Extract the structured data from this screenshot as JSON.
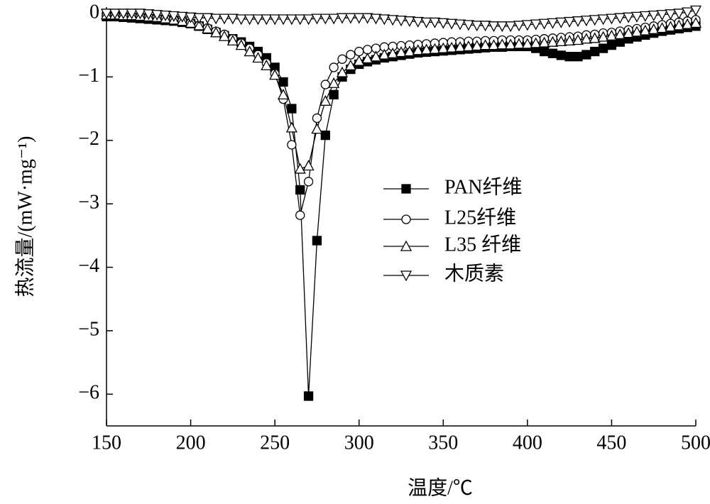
{
  "chart_data": {
    "type": "line",
    "xlabel": "温度/℃",
    "ylabel": "热流量/(mW·mg⁻¹)",
    "x": [
      150,
      155,
      160,
      165,
      170,
      175,
      180,
      185,
      190,
      195,
      200,
      205,
      210,
      215,
      220,
      225,
      230,
      235,
      240,
      245,
      250,
      255,
      260,
      265,
      270,
      275,
      280,
      285,
      290,
      295,
      300,
      305,
      310,
      315,
      320,
      325,
      330,
      335,
      340,
      345,
      350,
      355,
      360,
      365,
      370,
      375,
      380,
      385,
      390,
      395,
      400,
      405,
      410,
      415,
      420,
      425,
      430,
      435,
      440,
      445,
      450,
      455,
      460,
      465,
      470,
      475,
      480,
      485,
      490,
      495,
      500
    ],
    "series": [
      {
        "name": "PAN纤维",
        "color": "#000000",
        "marker": "filled-square",
        "values": [
          -0.05,
          -0.05,
          -0.06,
          -0.07,
          -0.08,
          -0.09,
          -0.1,
          -0.11,
          -0.12,
          -0.14,
          -0.16,
          -0.2,
          -0.25,
          -0.3,
          -0.35,
          -0.4,
          -0.45,
          -0.52,
          -0.6,
          -0.7,
          -0.85,
          -1.08,
          -1.5,
          -2.78,
          -6.03,
          -3.58,
          -1.92,
          -1.28,
          -1.0,
          -0.88,
          -0.8,
          -0.76,
          -0.73,
          -0.7,
          -0.68,
          -0.66,
          -0.64,
          -0.62,
          -0.61,
          -0.6,
          -0.59,
          -0.58,
          -0.57,
          -0.56,
          -0.55,
          -0.54,
          -0.53,
          -0.53,
          -0.52,
          -0.52,
          -0.52,
          -0.55,
          -0.6,
          -0.63,
          -0.66,
          -0.68,
          -0.68,
          -0.65,
          -0.6,
          -0.55,
          -0.5,
          -0.45,
          -0.4,
          -0.37,
          -0.34,
          -0.31,
          -0.28,
          -0.26,
          -0.24,
          -0.22,
          -0.2
        ]
      },
      {
        "name": "L25纤维",
        "color": "#000000",
        "marker": "open-circle",
        "values": [
          -0.03,
          -0.03,
          -0.04,
          -0.04,
          -0.05,
          -0.06,
          -0.07,
          -0.08,
          -0.1,
          -0.12,
          -0.15,
          -0.19,
          -0.23,
          -0.28,
          -0.33,
          -0.4,
          -0.47,
          -0.55,
          -0.65,
          -0.78,
          -0.95,
          -1.35,
          -2.07,
          -3.18,
          -2.65,
          -1.65,
          -1.12,
          -0.85,
          -0.72,
          -0.65,
          -0.6,
          -0.57,
          -0.55,
          -0.53,
          -0.52,
          -0.51,
          -0.5,
          -0.49,
          -0.48,
          -0.47,
          -0.46,
          -0.45,
          -0.45,
          -0.44,
          -0.44,
          -0.43,
          -0.43,
          -0.42,
          -0.42,
          -0.42,
          -0.42,
          -0.41,
          -0.4,
          -0.39,
          -0.38,
          -0.37,
          -0.36,
          -0.34,
          -0.33,
          -0.31,
          -0.3,
          -0.28,
          -0.26,
          -0.24,
          -0.22,
          -0.2,
          -0.18,
          -0.16,
          -0.14,
          -0.12,
          -0.1
        ]
      },
      {
        "name": "L35 纤维",
        "color": "#000000",
        "marker": "open-triangle-up",
        "values": [
          -0.02,
          -0.02,
          -0.03,
          -0.03,
          -0.04,
          -0.05,
          -0.06,
          -0.08,
          -0.1,
          -0.12,
          -0.15,
          -0.19,
          -0.24,
          -0.3,
          -0.36,
          -0.43,
          -0.5,
          -0.6,
          -0.7,
          -0.82,
          -0.97,
          -1.28,
          -1.8,
          -2.45,
          -2.4,
          -1.82,
          -1.38,
          -1.1,
          -0.93,
          -0.82,
          -0.75,
          -0.71,
          -0.68,
          -0.65,
          -0.63,
          -0.61,
          -0.6,
          -0.58,
          -0.57,
          -0.56,
          -0.55,
          -0.54,
          -0.53,
          -0.52,
          -0.51,
          -0.5,
          -0.5,
          -0.49,
          -0.49,
          -0.48,
          -0.48,
          -0.47,
          -0.46,
          -0.45,
          -0.44,
          -0.43,
          -0.42,
          -0.4,
          -0.39,
          -0.37,
          -0.35,
          -0.33,
          -0.31,
          -0.29,
          -0.27,
          -0.25,
          -0.23,
          -0.21,
          -0.19,
          -0.17,
          -0.15
        ]
      },
      {
        "name": "木质素",
        "color": "#000000",
        "marker": "open-triangle-down",
        "values": [
          0,
          0,
          0,
          0,
          0,
          -0.01,
          -0.02,
          -0.03,
          -0.04,
          -0.05,
          -0.06,
          -0.07,
          -0.07,
          -0.08,
          -0.08,
          -0.08,
          -0.09,
          -0.09,
          -0.09,
          -0.09,
          -0.09,
          -0.09,
          -0.09,
          -0.09,
          -0.09,
          -0.08,
          -0.08,
          -0.08,
          -0.07,
          -0.07,
          -0.07,
          -0.07,
          -0.08,
          -0.09,
          -0.1,
          -0.11,
          -0.12,
          -0.13,
          -0.14,
          -0.14,
          -0.15,
          -0.16,
          -0.17,
          -0.18,
          -0.19,
          -0.19,
          -0.2,
          -0.2,
          -0.2,
          -0.19,
          -0.18,
          -0.17,
          -0.16,
          -0.15,
          -0.14,
          -0.13,
          -0.12,
          -0.11,
          -0.1,
          -0.09,
          -0.08,
          -0.07,
          -0.06,
          -0.05,
          -0.04,
          -0.03,
          -0.02,
          -0.01,
          0,
          0.02,
          0.05
        ]
      }
    ],
    "xlim": [
      150,
      500
    ],
    "xticks": [
      150,
      200,
      250,
      300,
      350,
      400,
      450,
      500
    ],
    "ylim": [
      -6.5,
      0.1
    ],
    "yticks": [
      0,
      {
        "value": -1,
        "label": "−1"
      },
      {
        "value": -2,
        "label": "−2"
      },
      {
        "value": -3,
        "label": "−3"
      },
      {
        "value": -4,
        "label": "−4"
      },
      {
        "value": -5,
        "label": "−5"
      },
      {
        "value": -6,
        "label": "−6"
      }
    ],
    "grid": false,
    "legend": "center"
  }
}
